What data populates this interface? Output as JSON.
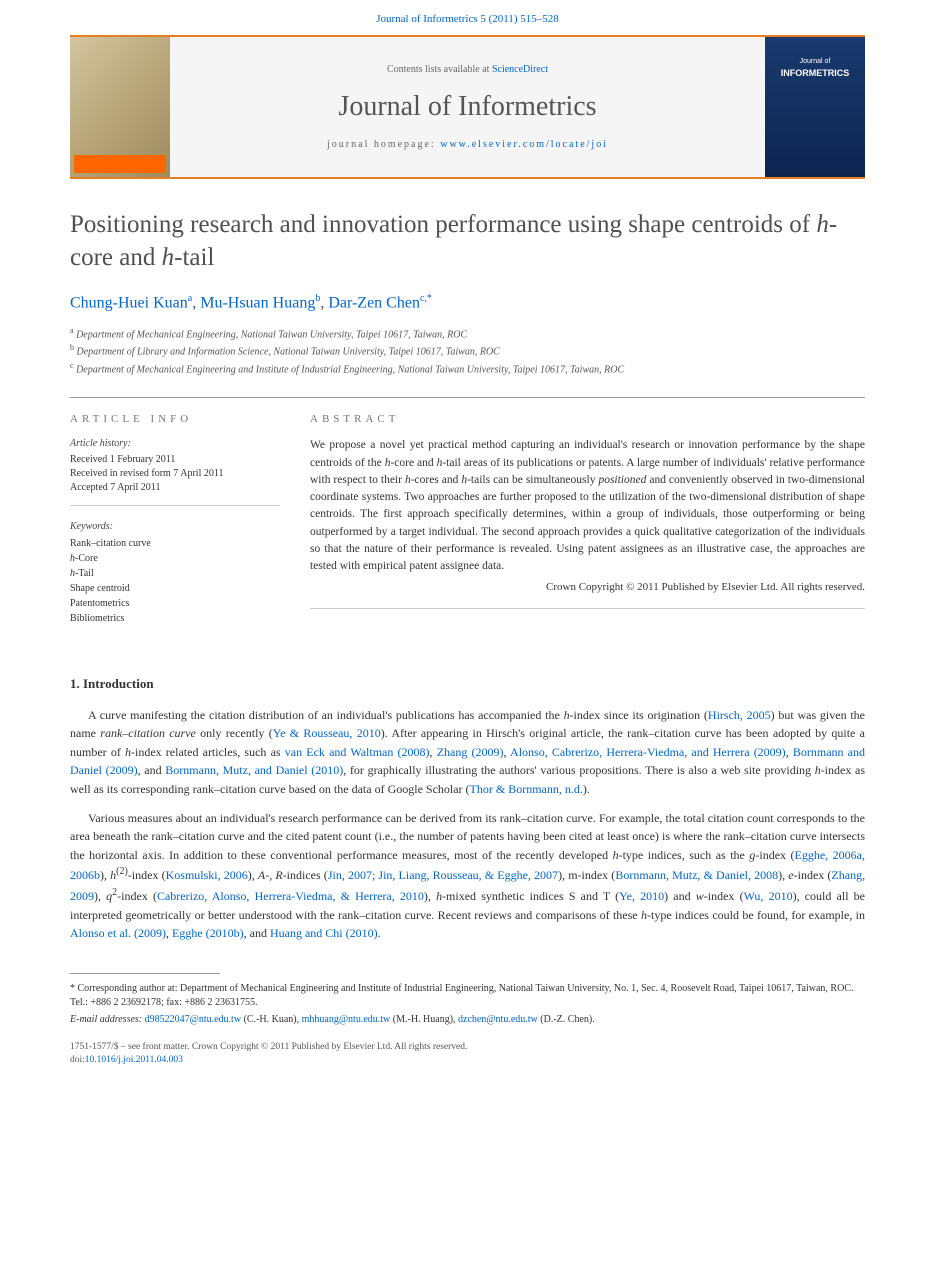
{
  "header": {
    "citation_prefix": "Journal of Informetrics 5 (2011) 515–528",
    "contents_text": "Contents lists available at ",
    "contents_link": "ScienceDirect",
    "journal_name": "Journal of Informetrics",
    "homepage_label": "journal homepage: ",
    "homepage_url": "www.elsevier.com/locate/joi",
    "elsevier": "ELSEVIER",
    "cover_journal_of": "Journal of",
    "cover_informetrics": "INFORMETRICS"
  },
  "article": {
    "title": "Positioning research and innovation performance using shape centroids of h-core and h-tail",
    "authors": [
      {
        "name": "Chung-Huei Kuan",
        "aff": "a"
      },
      {
        "name": "Mu-Hsuan Huang",
        "aff": "b"
      },
      {
        "name": "Dar-Zen Chen",
        "aff": "c,*"
      }
    ],
    "affiliations": [
      {
        "sup": "a",
        "text": "Department of Mechanical Engineering, National Taiwan University, Taipei 10617, Taiwan, ROC"
      },
      {
        "sup": "b",
        "text": "Department of Library and Information Science, National Taiwan University, Taipei 10617, Taiwan, ROC"
      },
      {
        "sup": "c",
        "text": "Department of Mechanical Engineering and Institute of Industrial Engineering, National Taiwan University, Taipei 10617, Taiwan, ROC"
      }
    ]
  },
  "info": {
    "heading": "ARTICLE INFO",
    "history_label": "Article history:",
    "history": [
      "Received 1 February 2011",
      "Received in revised form 7 April 2011",
      "Accepted 7 April 2011"
    ],
    "keywords_label": "Keywords:",
    "keywords": [
      "Rank–citation curve",
      "h-Core",
      "h-Tail",
      "Shape centroid",
      "Patentometrics",
      "Bibliometrics"
    ]
  },
  "abstract": {
    "heading": "ABSTRACT",
    "text": "We propose a novel yet practical method capturing an individual's research or innovation performance by the shape centroids of the h-core and h-tail areas of its publications or patents. A large number of individuals' relative performance with respect to their h-cores and h-tails can be simultaneously positioned and conveniently observed in two-dimensional coordinate systems. Two approaches are further proposed to the utilization of the two-dimensional distribution of shape centroids. The first approach specifically determines, within a group of individuals, those outperforming or being outperformed by a target individual. The second approach provides a quick qualitative categorization of the individuals so that the nature of their performance is revealed. Using patent assignees as an illustrative case, the approaches are tested with empirical patent assignee data.",
    "copyright": "Crown Copyright © 2011 Published by Elsevier Ltd. All rights reserved."
  },
  "sections": {
    "intro_heading": "1.  Introduction",
    "para1_pre": "A curve manifesting the citation distribution of an individual's publications has accompanied the ",
    "para1_hindex": "h",
    "para1_a": "-index since its origination (",
    "para1_link1": "Hirsch, 2005",
    "para1_b": ") but was given the name ",
    "para1_rcc": "rank–citation curve",
    "para1_c": " only recently (",
    "para1_link2": "Ye & Rousseau, 2010",
    "para1_d": "). After appearing in Hirsch's original article, the rank–citation curve has been adopted by quite a number of ",
    "para1_e": "-index related articles, such as ",
    "para1_link3": "van Eck and Waltman (2008)",
    "para1_link4": "Zhang (2009)",
    "para1_link5": "Alonso, Cabrerizo, Herrera-Viedma, and Herrera (2009)",
    "para1_link6": "Bornmann and Daniel (2009)",
    "para1_f": ", and ",
    "para1_link7": "Bornmann, Mutz, and Daniel (2010)",
    "para1_g": ", for graphically illustrating the authors' various propositions. There is also a web site providing ",
    "para1_h": "-index as well as its corresponding rank–citation curve based on the data of Google Scholar (",
    "para1_link8": "Thor & Bornmann, n.d.",
    "para1_i": ").",
    "para2_a": "Various measures about an individual's research performance can be derived from its rank–citation curve. For example, the total citation count corresponds to the area beneath the rank–citation curve and the cited patent count (i.e., the number of patents having been cited at least once) is where the rank–citation curve intersects the horizontal axis. In addition to these conventional performance measures, most of the recently developed ",
    "para2_b": "-type indices, such as the ",
    "para2_g": "g",
    "para2_c": "-index (",
    "para2_link1": "Egghe, 2006a, 2006b",
    "para2_d": "), ",
    "para2_h2": "h",
    "para2_sup2": "(2)",
    "para2_e": "-index (",
    "para2_link2": "Kosmulski, 2006",
    "para2_f": "), ",
    "para2_ar": "A-, R",
    "para2_g2": "-indices (",
    "para2_link3": "Jin, 2007; Jin, Liang, Rousseau, & Egghe, 2007",
    "para2_h3": "), m-index (",
    "para2_link4": "Bornmann, Mutz, & Daniel, 2008",
    "para2_i": "), ",
    "para2_eidx": "e",
    "para2_j": "-index (",
    "para2_link5": "Zhang, 2009",
    "para2_k": "), ",
    "para2_q2": "q",
    "para2_sup_q": "2",
    "para2_l": "-index (",
    "para2_link6": "Cabrerizo, Alonso, Herrera-Viedma, & Herrera, 2010",
    "para2_m": "), ",
    "para2_hmix": "h",
    "para2_n": "-mixed synthetic indices S and T (",
    "para2_link7": "Ye, 2010",
    "para2_o": ") and ",
    "para2_w": "w",
    "para2_p": "-index (",
    "para2_link8": "Wu, 2010",
    "para2_q": "), could all be interpreted geometrically or better understood with the rank–citation curve. Recent reviews and comparisons of these ",
    "para2_r": "-type indices could be found, for example, in ",
    "para2_link9": "Alonso et al. (2009)",
    "para2_link10": "Egghe (2010b)",
    "para2_s": ", and ",
    "para2_link11": "Huang and Chi (2010)",
    "para2_t": "."
  },
  "footnotes": {
    "corr_label": "* Corresponding author at: Department of Mechanical Engineering and Institute of Industrial Engineering, National Taiwan University, No. 1, Sec. 4, Roosevelt Road, Taipei 10617, Taiwan, ROC. Tel.: +886 2 23692178; fax: +886 2 23631755.",
    "email_label": "E-mail addresses: ",
    "emails": [
      {
        "addr": "d98522047@ntu.edu.tw",
        "who": " (C.-H. Kuan), "
      },
      {
        "addr": "mhhuang@ntu.edu.tw",
        "who": " (M.-H. Huang), "
      },
      {
        "addr": "dzchen@ntu.edu.tw",
        "who": " (D.-Z. Chen)."
      }
    ]
  },
  "bottom": {
    "issn": "1751-1577/$ – see front matter. Crown Copyright © 2011 Published by Elsevier Ltd. All rights reserved.",
    "doi_label": "doi:",
    "doi": "10.1016/j.joi.2011.04.003"
  },
  "colors": {
    "accent": "#e67e22",
    "link": "#0066cc",
    "text": "#333333",
    "muted": "#777777",
    "banner_bg": "#f5f5f5",
    "cover_blue": "#1a3a6e"
  }
}
